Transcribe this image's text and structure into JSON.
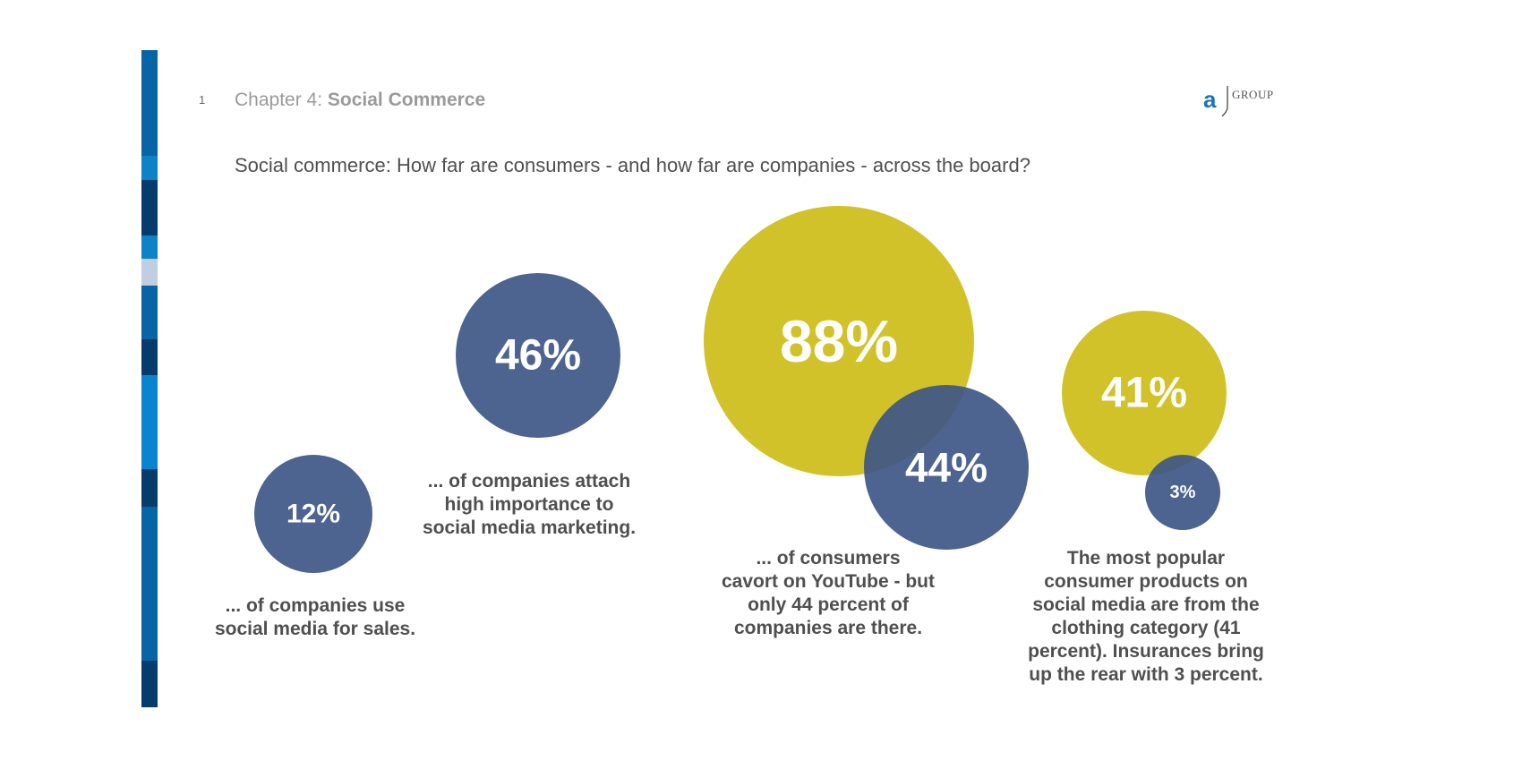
{
  "header": {
    "page_number": "1",
    "chapter_prefix": "Chapter 4: ",
    "chapter_title": "Social Commerce",
    "logo_mark": "a",
    "logo_word": "GROUP"
  },
  "subtitle": "Social commerce: How far are consumers - and how far are companies - across the board?",
  "colors": {
    "sidebar": [
      "#0765a5",
      "#0d82c7",
      "#063c6c",
      "#0d82c7",
      "#c1cde0",
      "#0765a5",
      "#063c6c",
      "#0985d0",
      "#063c6c",
      "#0765a5",
      "#063c6c"
    ],
    "companies": "#3e5687",
    "consumers": "#cebd17",
    "caption_text": "#4f4f4f"
  },
  "chart_data": {
    "type": "bubble",
    "title": "",
    "series": [
      {
        "name": "",
        "group": "companies",
        "label": "12%",
        "value": 12
      },
      {
        "name": "",
        "group": "companies",
        "label": "46%",
        "value": 46
      },
      {
        "name": "",
        "group": "consumers",
        "label": "88%",
        "value": 88
      },
      {
        "name": "",
        "group": "companies",
        "label": "44%",
        "value": 44
      },
      {
        "name": "",
        "group": "consumers",
        "label": "41%",
        "value": 41
      },
      {
        "name": "",
        "group": "companies",
        "label": "3%",
        "value": 3
      }
    ],
    "captions": [
      "... of companies use\nsocial media for sales.",
      "... of companies attach\nhigh importance to\nsocial media marketing.",
      "... of consumers\ncavort on YouTube - but\nonly 44 percent of\ncompanies are there.",
      "The most popular\nconsumer products on\nsocial media are from the\nclothing category (41\npercent). Insurances bring\nup the rear with 3 percent."
    ]
  }
}
